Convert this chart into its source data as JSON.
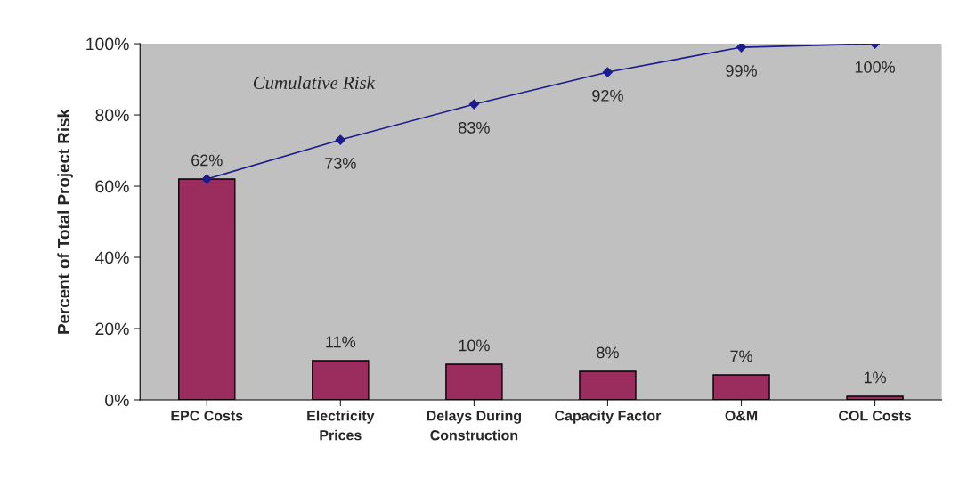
{
  "chart_data": {
    "type": "bar",
    "ylabel": "Percent of Total Project Risk",
    "categories": [
      "EPC Costs",
      "Electricity\nPrices",
      "Delays During\nConstruction",
      "Capacity Factor",
      "O&M",
      "COL Costs"
    ],
    "series": [
      {
        "color": "#9b2c5e",
        "values": [
          62,
          11,
          10,
          8,
          7,
          1
        ],
        "value_labels": [
          "62%",
          "11%",
          "10%",
          "8%",
          "7%",
          "1%"
        ]
      },
      {
        "type": "line",
        "name": "Cumulative Risk",
        "color": "#1c1c8c",
        "marker": "diamond",
        "values": [
          62,
          73,
          83,
          92,
          99,
          100
        ],
        "value_labels": [
          null,
          "73%",
          "83%",
          "92%",
          "99%",
          "100%"
        ]
      }
    ],
    "ylim": [
      0,
      100
    ],
    "yticks": [
      {
        "value": 0,
        "label": "0%"
      },
      {
        "value": 20,
        "label": "20%"
      },
      {
        "value": 40,
        "label": "40%"
      },
      {
        "value": 60,
        "label": "60%"
      },
      {
        "value": 80,
        "label": "80%"
      },
      {
        "value": 100,
        "label": "100%"
      }
    ],
    "grid": false,
    "legend": false
  }
}
